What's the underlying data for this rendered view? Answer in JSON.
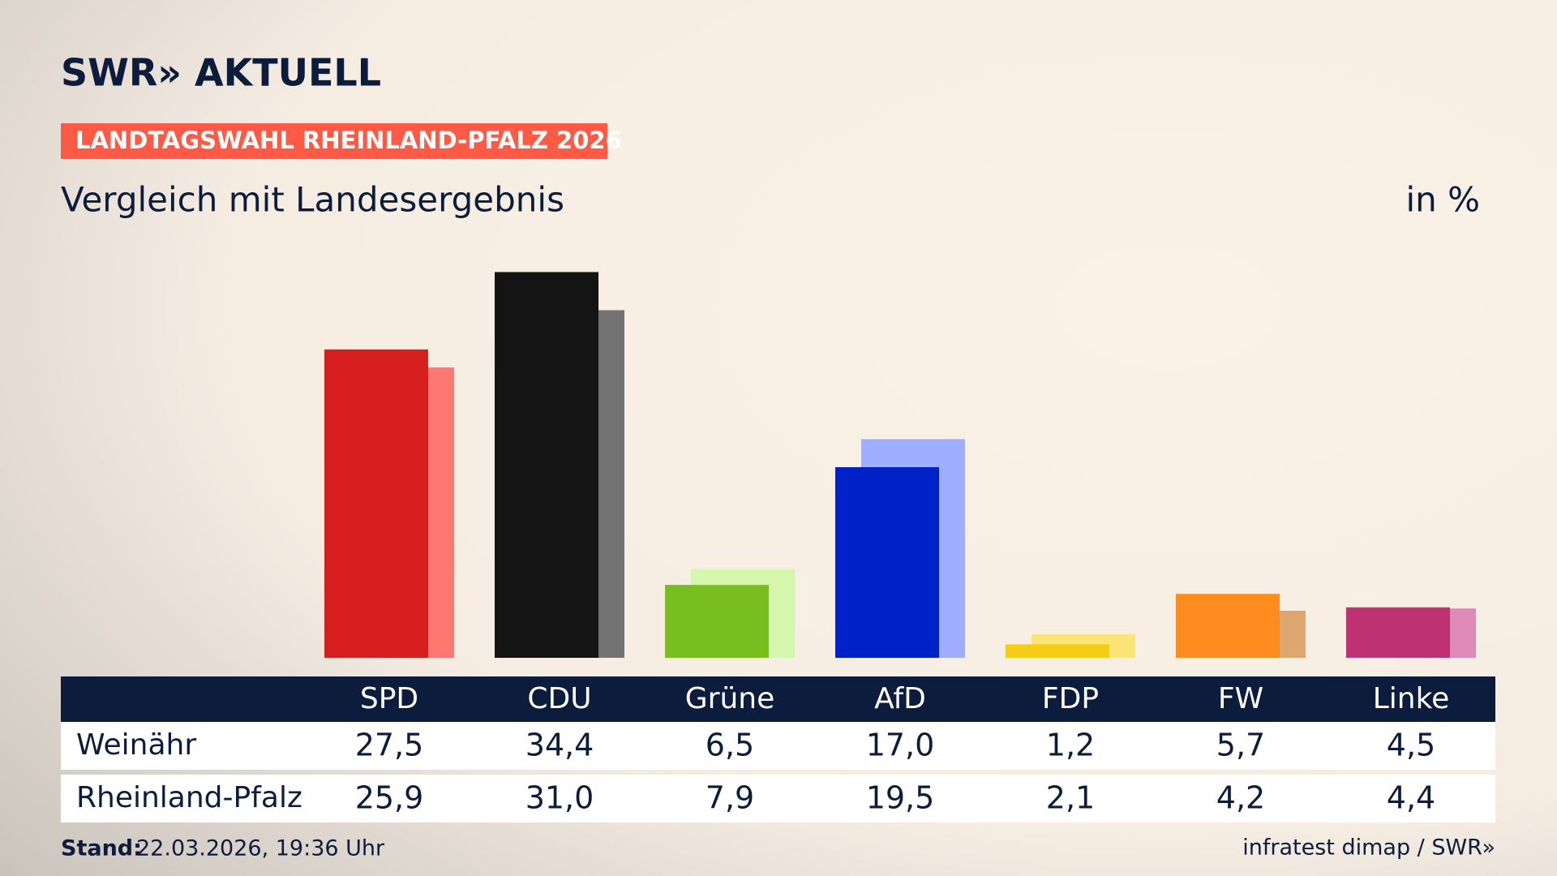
{
  "header": {
    "brand": "SWR» AKTUELL",
    "label": "LANDTAGSWAHL RHEINLAND-PFALZ 2026"
  },
  "chart_data": {
    "type": "bar",
    "title": "Vergleich mit Landesergebnis",
    "unit": "in %",
    "categories": [
      "SPD",
      "CDU",
      "Grüne",
      "AfD",
      "FDP",
      "FW",
      "Linke"
    ],
    "ylim": [
      0,
      40
    ],
    "series": [
      {
        "name": "Weinähr",
        "colors": [
          "#d61e1e",
          "#141414",
          "#78be1e",
          "#0021c8",
          "#f5cd14",
          "#ff8c1e",
          "#be3273"
        ],
        "values": [
          27.5,
          34.4,
          6.5,
          17.0,
          1.2,
          5.7,
          4.5
        ],
        "value_labels": [
          "27,5",
          "34,4",
          "6,5",
          "17,0",
          "1,2",
          "5,7",
          "4,5"
        ]
      },
      {
        "name": "Rheinland-Pfalz",
        "colors": [
          "#ff7771",
          "#737373",
          "#d5f7ad",
          "#a0aeff",
          "#fde476",
          "#dea772",
          "#de8ab6"
        ],
        "values": [
          25.9,
          31.0,
          7.9,
          19.5,
          2.1,
          4.2,
          4.4
        ],
        "value_labels": [
          "25,9",
          "31,0",
          "7,9",
          "19,5",
          "2,1",
          "4,2",
          "4,4"
        ]
      }
    ]
  },
  "footer": {
    "stand_label": "Stand:",
    "stand": "22.03.2026, 19:36 Uhr",
    "source": "infratest dimap / SWR»"
  }
}
